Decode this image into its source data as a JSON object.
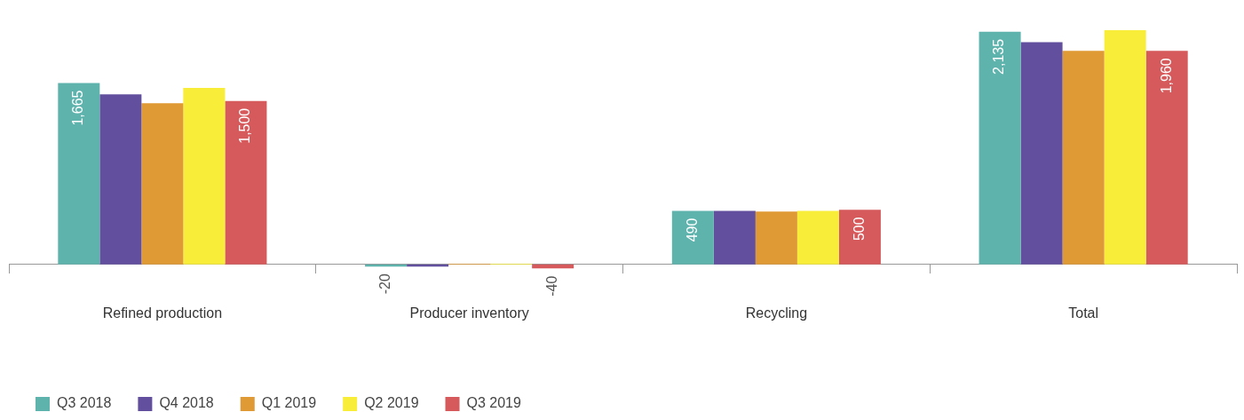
{
  "chart_data": {
    "type": "bar",
    "categories": [
      "Refined production",
      "Producer inventory",
      "Recycling",
      "Total"
    ],
    "legend": "bottom left",
    "series": [
      {
        "name": "Q3 2018",
        "color": "#5fb3ad",
        "values": [
          1665,
          -20,
          490,
          2135
        ],
        "value_labels": [
          "1,665",
          "-20",
          "490",
          "2,135"
        ]
      },
      {
        "name": "Q4 2018",
        "color": "#62509f",
        "values": [
          1560,
          -20,
          490,
          2040
        ]
      },
      {
        "name": "Q1 2019",
        "color": "#e09a35",
        "values": [
          1480,
          5,
          485,
          1960
        ]
      },
      {
        "name": "Q2 2019",
        "color": "#f8ee3a",
        "values": [
          1620,
          5,
          490,
          2150
        ]
      },
      {
        "name": "Q3 2019",
        "color": "#d65a5c",
        "values": [
          1500,
          -40,
          500,
          1960
        ],
        "value_labels": [
          "1,500",
          "-40",
          "500",
          "1,960"
        ]
      }
    ]
  }
}
